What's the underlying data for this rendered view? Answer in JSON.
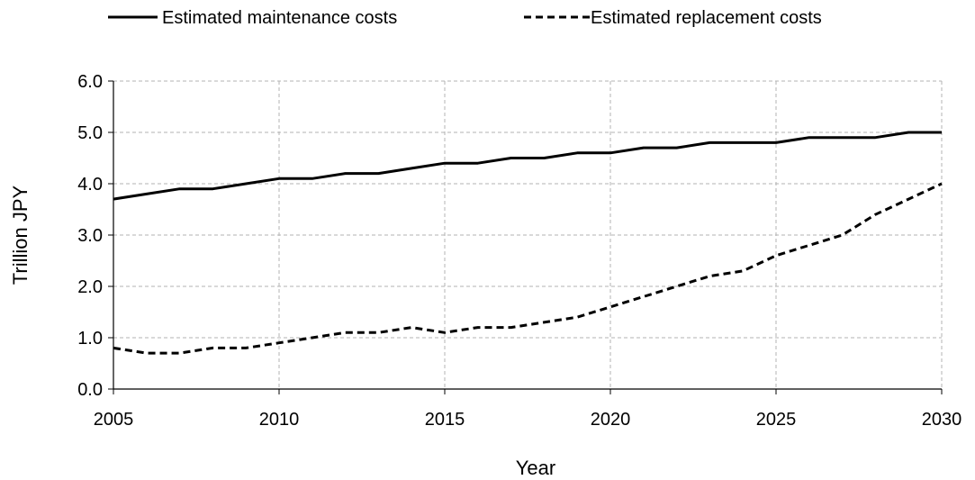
{
  "chart_data": {
    "type": "line",
    "title": "",
    "xlabel": "Year",
    "ylabel": "Trillion JPY",
    "xlim": [
      2005,
      2030
    ],
    "ylim": [
      0,
      6
    ],
    "grid": true,
    "legend_position": "top",
    "x_ticks": [
      "2005",
      "2010",
      "2015",
      "2020",
      "2025",
      "2030"
    ],
    "y_ticks": [
      "0.0",
      "1.0",
      "2.0",
      "3.0",
      "4.0",
      "5.0",
      "6.0"
    ],
    "x": [
      2005,
      2006,
      2007,
      2008,
      2009,
      2010,
      2011,
      2012,
      2013,
      2014,
      2015,
      2016,
      2017,
      2018,
      2019,
      2020,
      2021,
      2022,
      2023,
      2024,
      2025,
      2026,
      2027,
      2028,
      2029,
      2030
    ],
    "series": [
      {
        "name": "Estimated maintenance costs",
        "style": "solid",
        "color": "#000000",
        "values": [
          3.7,
          3.8,
          3.9,
          3.9,
          4.0,
          4.1,
          4.1,
          4.2,
          4.2,
          4.3,
          4.4,
          4.4,
          4.5,
          4.5,
          4.6,
          4.6,
          4.7,
          4.7,
          4.8,
          4.8,
          4.8,
          4.9,
          4.9,
          4.9,
          5.0,
          5.0
        ]
      },
      {
        "name": "Estimated replacement costs",
        "style": "dashed",
        "color": "#000000",
        "values": [
          0.8,
          0.7,
          0.7,
          0.8,
          0.8,
          0.9,
          1.0,
          1.1,
          1.1,
          1.2,
          1.1,
          1.2,
          1.2,
          1.3,
          1.4,
          1.6,
          1.8,
          2.0,
          2.2,
          2.3,
          2.6,
          2.8,
          3.0,
          3.4,
          3.7,
          4.0
        ]
      }
    ]
  }
}
